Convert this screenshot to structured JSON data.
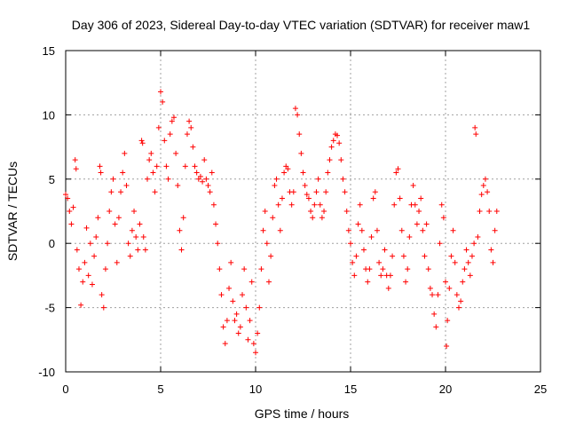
{
  "chart_data": {
    "type": "scatter",
    "title": "Day 306 of 2023, Sidereal Day-to-day VTEC variation (SDTVAR) for receiver maw1",
    "xlabel": "GPS time / hours",
    "ylabel": "SDTVAR / TECUs",
    "xlim": [
      0,
      25
    ],
    "ylim": [
      -10,
      15
    ],
    "xticks": [
      0,
      5,
      10,
      15,
      20,
      25
    ],
    "yticks": [
      -10,
      -5,
      0,
      5,
      10,
      15
    ],
    "xtick_labels": [
      "0",
      "5",
      "10",
      "15",
      "20",
      "25"
    ],
    "ytick_labels": [
      "-10",
      "-5",
      "0",
      "5",
      "10",
      "15"
    ],
    "grid": true,
    "marker": "+",
    "series": [
      {
        "name": "maw1 SDTVAR",
        "color": "#ff0000",
        "points": [
          [
            0.0,
            3.8
          ],
          [
            0.1,
            3.5
          ],
          [
            0.2,
            2.5
          ],
          [
            0.3,
            1.5
          ],
          [
            0.4,
            2.8
          ],
          [
            0.5,
            6.5
          ],
          [
            0.55,
            5.8
          ],
          [
            0.6,
            -0.5
          ],
          [
            0.7,
            -2.0
          ],
          [
            0.8,
            -4.8
          ],
          [
            0.9,
            -3.0
          ],
          [
            1.0,
            -1.5
          ],
          [
            1.1,
            1.2
          ],
          [
            1.2,
            -2.5
          ],
          [
            1.3,
            0.0
          ],
          [
            1.4,
            -3.2
          ],
          [
            1.5,
            -1.0
          ],
          [
            1.6,
            0.5
          ],
          [
            1.7,
            2.0
          ],
          [
            1.8,
            6.0
          ],
          [
            1.85,
            5.5
          ],
          [
            1.9,
            -4.0
          ],
          [
            2.0,
            -5.0
          ],
          [
            2.1,
            -2.0
          ],
          [
            2.2,
            0.0
          ],
          [
            2.3,
            2.5
          ],
          [
            2.4,
            4.0
          ],
          [
            2.5,
            5.0
          ],
          [
            2.6,
            1.5
          ],
          [
            2.7,
            -1.5
          ],
          [
            2.8,
            2.0
          ],
          [
            2.9,
            4.0
          ],
          [
            3.0,
            5.5
          ],
          [
            3.1,
            7.0
          ],
          [
            3.2,
            4.5
          ],
          [
            3.3,
            0.0
          ],
          [
            3.4,
            -1.0
          ],
          [
            3.5,
            1.0
          ],
          [
            3.6,
            2.5
          ],
          [
            3.7,
            0.5
          ],
          [
            3.8,
            -0.5
          ],
          [
            3.9,
            1.5
          ],
          [
            4.0,
            8.0
          ],
          [
            4.05,
            7.8
          ],
          [
            4.1,
            0.5
          ],
          [
            4.2,
            -0.5
          ],
          [
            4.3,
            5.0
          ],
          [
            4.4,
            6.5
          ],
          [
            4.5,
            7.0
          ],
          [
            4.6,
            5.5
          ],
          [
            4.7,
            4.0
          ],
          [
            4.8,
            6.0
          ],
          [
            4.9,
            9.0
          ],
          [
            5.0,
            11.8
          ],
          [
            5.1,
            11.0
          ],
          [
            5.2,
            8.0
          ],
          [
            5.3,
            6.0
          ],
          [
            5.4,
            5.0
          ],
          [
            5.5,
            8.5
          ],
          [
            5.6,
            9.5
          ],
          [
            5.7,
            9.8
          ],
          [
            5.8,
            7.0
          ],
          [
            5.9,
            4.5
          ],
          [
            6.0,
            1.0
          ],
          [
            6.1,
            -0.5
          ],
          [
            6.2,
            2.0
          ],
          [
            6.3,
            6.0
          ],
          [
            6.4,
            8.5
          ],
          [
            6.5,
            9.5
          ],
          [
            6.6,
            9.0
          ],
          [
            6.7,
            7.5
          ],
          [
            6.8,
            6.0
          ],
          [
            6.9,
            5.5
          ],
          [
            7.0,
            5.0
          ],
          [
            7.1,
            5.2
          ],
          [
            7.2,
            4.8
          ],
          [
            7.3,
            6.5
          ],
          [
            7.4,
            5.0
          ],
          [
            7.5,
            4.5
          ],
          [
            7.6,
            4.0
          ],
          [
            7.7,
            5.5
          ],
          [
            7.8,
            3.0
          ],
          [
            7.9,
            1.5
          ],
          [
            8.0,
            0.0
          ],
          [
            8.1,
            -2.0
          ],
          [
            8.2,
            -4.0
          ],
          [
            8.3,
            -6.5
          ],
          [
            8.4,
            -7.8
          ],
          [
            8.5,
            -6.0
          ],
          [
            8.6,
            -3.5
          ],
          [
            8.7,
            -1.5
          ],
          [
            8.8,
            -4.5
          ],
          [
            8.9,
            -6.0
          ],
          [
            9.0,
            -5.5
          ],
          [
            9.1,
            -7.0
          ],
          [
            9.2,
            -6.5
          ],
          [
            9.3,
            -4.0
          ],
          [
            9.4,
            -2.0
          ],
          [
            9.5,
            -5.0
          ],
          [
            9.6,
            -7.5
          ],
          [
            9.7,
            -6.0
          ],
          [
            9.8,
            -3.0
          ],
          [
            9.9,
            -7.8
          ],
          [
            10.0,
            -8.5
          ],
          [
            10.1,
            -7.0
          ],
          [
            10.2,
            -5.0
          ],
          [
            10.3,
            -2.0
          ],
          [
            10.4,
            1.0
          ],
          [
            10.5,
            2.5
          ],
          [
            10.6,
            0.0
          ],
          [
            10.7,
            -3.0
          ],
          [
            10.8,
            -1.0
          ],
          [
            10.9,
            2.0
          ],
          [
            11.0,
            4.5
          ],
          [
            11.1,
            5.0
          ],
          [
            11.2,
            3.0
          ],
          [
            11.3,
            1.0
          ],
          [
            11.4,
            3.5
          ],
          [
            11.5,
            5.5
          ],
          [
            11.6,
            6.0
          ],
          [
            11.7,
            5.8
          ],
          [
            11.8,
            4.0
          ],
          [
            11.9,
            3.0
          ],
          [
            12.0,
            4.0
          ],
          [
            12.1,
            10.5
          ],
          [
            12.2,
            10.0
          ],
          [
            12.3,
            8.5
          ],
          [
            12.4,
            7.0
          ],
          [
            12.5,
            5.5
          ],
          [
            12.6,
            4.5
          ],
          [
            12.7,
            3.8
          ],
          [
            12.8,
            3.5
          ],
          [
            12.9,
            2.5
          ],
          [
            13.0,
            2.0
          ],
          [
            13.1,
            3.0
          ],
          [
            13.2,
            4.0
          ],
          [
            13.3,
            5.0
          ],
          [
            13.4,
            3.0
          ],
          [
            13.5,
            2.0
          ],
          [
            13.6,
            2.5
          ],
          [
            13.7,
            4.0
          ],
          [
            13.8,
            5.5
          ],
          [
            13.9,
            6.5
          ],
          [
            14.0,
            7.5
          ],
          [
            14.1,
            8.0
          ],
          [
            14.2,
            8.5
          ],
          [
            14.3,
            8.4
          ],
          [
            14.4,
            7.8
          ],
          [
            14.5,
            6.5
          ],
          [
            14.6,
            5.0
          ],
          [
            14.7,
            4.0
          ],
          [
            14.8,
            2.5
          ],
          [
            14.9,
            1.0
          ],
          [
            15.0,
            0.0
          ],
          [
            15.1,
            -1.5
          ],
          [
            15.2,
            -2.5
          ],
          [
            15.3,
            -1.0
          ],
          [
            15.4,
            1.5
          ],
          [
            15.5,
            3.0
          ],
          [
            15.6,
            1.0
          ],
          [
            15.7,
            -0.5
          ],
          [
            15.8,
            -2.0
          ],
          [
            15.9,
            -3.0
          ],
          [
            16.0,
            -2.0
          ],
          [
            16.1,
            0.5
          ],
          [
            16.2,
            3.5
          ],
          [
            16.3,
            4.0
          ],
          [
            16.4,
            1.0
          ],
          [
            16.5,
            -1.5
          ],
          [
            16.6,
            -2.5
          ],
          [
            16.7,
            -2.0
          ],
          [
            16.8,
            -0.5
          ],
          [
            16.9,
            -2.5
          ],
          [
            17.0,
            -3.5
          ],
          [
            17.1,
            -2.5
          ],
          [
            17.2,
            -1.0
          ],
          [
            17.3,
            3.0
          ],
          [
            17.4,
            5.5
          ],
          [
            17.5,
            5.8
          ],
          [
            17.6,
            3.5
          ],
          [
            17.7,
            1.0
          ],
          [
            17.8,
            -1.0
          ],
          [
            17.9,
            -3.0
          ],
          [
            18.0,
            -2.0
          ],
          [
            18.1,
            0.5
          ],
          [
            18.2,
            3.0
          ],
          [
            18.3,
            4.5
          ],
          [
            18.4,
            3.0
          ],
          [
            18.5,
            1.5
          ],
          [
            18.6,
            2.5
          ],
          [
            18.7,
            3.5
          ],
          [
            18.8,
            1.0
          ],
          [
            18.9,
            -1.0
          ],
          [
            19.0,
            1.5
          ],
          [
            19.1,
            -2.0
          ],
          [
            19.2,
            -3.5
          ],
          [
            19.3,
            -4.0
          ],
          [
            19.4,
            -5.5
          ],
          [
            19.5,
            -6.5
          ],
          [
            19.6,
            -4.0
          ],
          [
            19.7,
            0.0
          ],
          [
            19.8,
            3.0
          ],
          [
            19.9,
            2.0
          ],
          [
            20.0,
            -3.0
          ],
          [
            20.05,
            -8.0
          ],
          [
            20.1,
            -6.0
          ],
          [
            20.2,
            -3.5
          ],
          [
            20.3,
            -1.0
          ],
          [
            20.4,
            1.0
          ],
          [
            20.5,
            -1.5
          ],
          [
            20.6,
            -4.0
          ],
          [
            20.7,
            -5.0
          ],
          [
            20.8,
            -4.5
          ],
          [
            20.9,
            -3.0
          ],
          [
            21.0,
            -2.0
          ],
          [
            21.1,
            -0.5
          ],
          [
            21.2,
            -1.5
          ],
          [
            21.3,
            -2.5
          ],
          [
            21.4,
            -1.0
          ],
          [
            21.5,
            0.0
          ],
          [
            21.55,
            9.0
          ],
          [
            21.6,
            8.5
          ],
          [
            21.7,
            0.5
          ],
          [
            21.8,
            2.5
          ],
          [
            21.9,
            3.8
          ],
          [
            22.0,
            4.5
          ],
          [
            22.1,
            5.0
          ],
          [
            22.2,
            4.0
          ],
          [
            22.3,
            2.5
          ],
          [
            22.4,
            -0.5
          ],
          [
            22.5,
            -1.5
          ],
          [
            22.6,
            1.0
          ],
          [
            22.7,
            2.5
          ]
        ]
      }
    ]
  }
}
